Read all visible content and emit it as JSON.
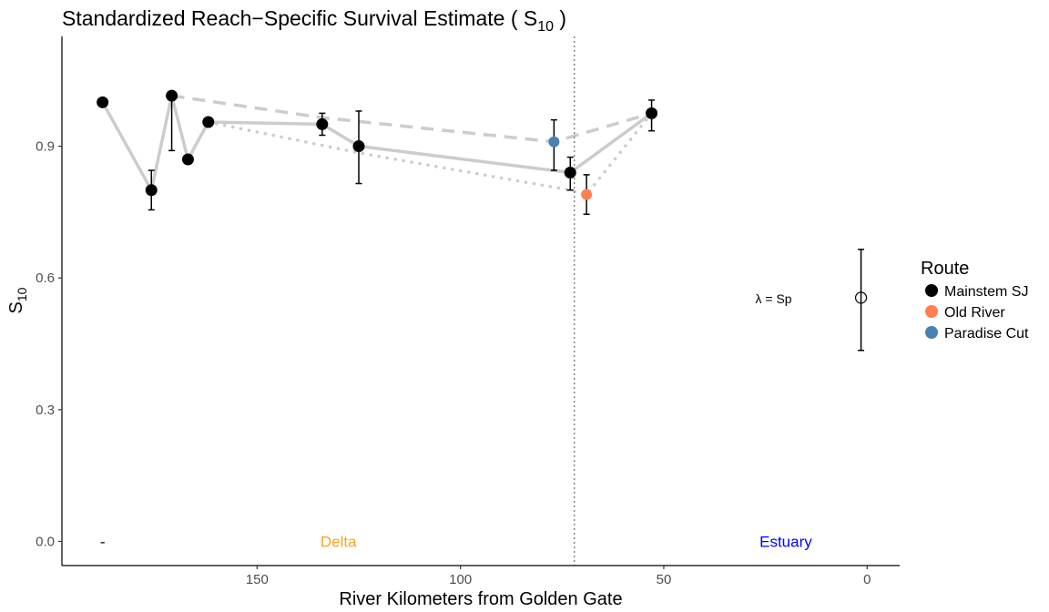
{
  "chart_data": {
    "type": "scatter",
    "title": "Standardized Reach−Specific Survival Estimate ( S",
    "title_sub": "10",
    "title_end": " )",
    "xlabel": "River Kilometers from Golden Gate",
    "ylabel": "S",
    "ylabel_sub": "10",
    "xlim": [
      -8,
      198
    ],
    "ylim": [
      -0.055,
      1.15
    ],
    "x_reversed": true,
    "x_ticks": [
      150,
      100,
      50,
      0
    ],
    "x_tick_labels": [
      "150",
      "100",
      "50",
      "0"
    ],
    "y_ticks": [
      0.0,
      0.3,
      0.6,
      0.9
    ],
    "y_tick_labels": [
      "0.0",
      "0.3",
      "0.6",
      "0.9"
    ],
    "grid": false,
    "legend": {
      "title": "Route",
      "position": "right",
      "entries": [
        {
          "label": "Mainstem SJ",
          "color": "#000000"
        },
        {
          "label": "Old River",
          "color": "#FF7F50"
        },
        {
          "label": "Paradise Cut",
          "color": "#4682B4"
        }
      ]
    },
    "vline": {
      "x": 72,
      "style": "dotted",
      "color": "#808080"
    },
    "series": [
      {
        "name": "Mainstem SJ",
        "color": "#000000",
        "points": [
          {
            "x": 188,
            "y": 1.0
          },
          {
            "x": 176,
            "y": 0.8,
            "lo": 0.755,
            "hi": 0.845
          },
          {
            "x": 171,
            "y": 1.015,
            "lo": 0.89,
            "hi": 1.015
          },
          {
            "x": 167,
            "y": 0.87
          },
          {
            "x": 162,
            "y": 0.955
          },
          {
            "x": 134,
            "y": 0.95,
            "lo": 0.925,
            "hi": 0.975
          },
          {
            "x": 125,
            "y": 0.9,
            "lo": 0.815,
            "hi": 0.98
          },
          {
            "x": 73,
            "y": 0.84,
            "lo": 0.8,
            "hi": 0.875
          },
          {
            "x": 53,
            "y": 0.975,
            "lo": 0.935,
            "hi": 1.005
          }
        ]
      },
      {
        "name": "Old River",
        "color": "#FF7F50",
        "points": [
          {
            "x": 69,
            "y": 0.79,
            "lo": 0.745,
            "hi": 0.835
          }
        ]
      },
      {
        "name": "Paradise Cut",
        "color": "#4682B4",
        "points": [
          {
            "x": 77,
            "y": 0.91,
            "lo": 0.845,
            "hi": 0.96
          }
        ]
      }
    ],
    "route_lines": [
      {
        "style": "solid",
        "color": "#CCCCCC",
        "points": [
          [
            188,
            1.0
          ],
          [
            176,
            0.8
          ],
          [
            171,
            1.015
          ],
          [
            167,
            0.87
          ],
          [
            162,
            0.955
          ],
          [
            134,
            0.95
          ],
          [
            125,
            0.9
          ],
          [
            73,
            0.84
          ],
          [
            53,
            0.975
          ]
        ]
      },
      {
        "style": "dashed",
        "color": "#CCCCCC",
        "points": [
          [
            171,
            1.015
          ],
          [
            134,
            0.965
          ],
          [
            77,
            0.91
          ],
          [
            53,
            0.975
          ]
        ]
      },
      {
        "style": "dotted",
        "color": "#CCCCCC",
        "points": [
          [
            162,
            0.955
          ],
          [
            125,
            0.885
          ],
          [
            73,
            0.8
          ],
          [
            69,
            0.79
          ],
          [
            53,
            0.975
          ]
        ]
      }
    ],
    "lambda_point": {
      "x": 1.5,
      "y": 0.555,
      "lo": 0.435,
      "hi": 0.665,
      "filled": false
    },
    "annotations": [
      {
        "text": "λ = Sp",
        "x": 23,
        "y": 0.555,
        "color": "#000000"
      },
      {
        "text": "-",
        "x": 188,
        "y": 0.0,
        "color": "#000000"
      },
      {
        "text": "Delta",
        "x": 130,
        "y": 0.0,
        "color": "#F5A623"
      },
      {
        "text": "Estuary",
        "x": 20,
        "y": 0.0,
        "color": "#0000FF"
      }
    ]
  }
}
